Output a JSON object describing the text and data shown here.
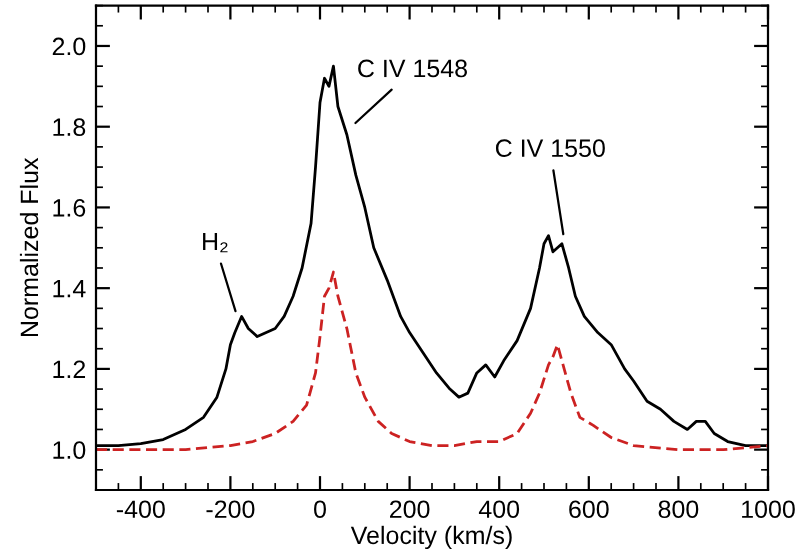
{
  "chart_data": {
    "type": "line",
    "xlabel": "Velocity (km/s)",
    "ylabel": "Normalized Flux",
    "xlim": [
      -500,
      1000
    ],
    "xticks": [
      -400,
      -200,
      0,
      200,
      400,
      600,
      800,
      1000
    ],
    "ylim": [
      0.9,
      2.1
    ],
    "yticks": [
      {
        "value": 1,
        "label": "1.0"
      },
      1.2,
      1.4,
      1.6,
      1.8,
      {
        "value": 2,
        "label": "2.0"
      }
    ],
    "grid": false,
    "legend": false,
    "series": [
      {
        "color": "#000000",
        "line_style": "solid",
        "x": [
          -500,
          -450,
          -400,
          -350,
          -300,
          -260,
          -230,
          -210,
          -200,
          -190,
          -175,
          -160,
          -140,
          -120,
          -100,
          -80,
          -60,
          -40,
          -20,
          -10,
          0,
          10,
          20,
          30,
          40,
          60,
          80,
          100,
          120,
          150,
          180,
          200,
          230,
          260,
          290,
          310,
          330,
          350,
          370,
          390,
          410,
          440,
          470,
          490,
          500,
          510,
          520,
          540,
          555,
          570,
          590,
          620,
          650,
          680,
          700,
          730,
          760,
          790,
          820,
          840,
          860,
          880,
          910,
          950,
          1000
        ],
        "values": [
          1.01,
          1.01,
          1.015,
          1.025,
          1.05,
          1.08,
          1.13,
          1.2,
          1.26,
          1.29,
          1.33,
          1.3,
          1.28,
          1.29,
          1.3,
          1.33,
          1.38,
          1.45,
          1.56,
          1.7,
          1.86,
          1.92,
          1.9,
          1.95,
          1.85,
          1.78,
          1.68,
          1.6,
          1.5,
          1.42,
          1.33,
          1.29,
          1.24,
          1.19,
          1.15,
          1.13,
          1.14,
          1.19,
          1.21,
          1.18,
          1.22,
          1.27,
          1.35,
          1.45,
          1.51,
          1.53,
          1.49,
          1.51,
          1.45,
          1.38,
          1.33,
          1.29,
          1.26,
          1.2,
          1.17,
          1.12,
          1.1,
          1.07,
          1.05,
          1.07,
          1.07,
          1.04,
          1.02,
          1.01,
          1.01
        ]
      },
      {
        "color": "#cc2222",
        "line_style": "dashed",
        "x": [
          -500,
          -400,
          -300,
          -200,
          -150,
          -100,
          -60,
          -30,
          -10,
          0,
          10,
          20,
          30,
          40,
          60,
          80,
          100,
          130,
          160,
          200,
          250,
          300,
          350,
          400,
          440,
          470,
          490,
          510,
          520,
          530,
          545,
          560,
          580,
          610,
          650,
          700,
          800,
          900,
          1000
        ],
        "values": [
          1.0,
          1.0,
          1.0,
          1.01,
          1.02,
          1.04,
          1.07,
          1.11,
          1.19,
          1.28,
          1.38,
          1.4,
          1.44,
          1.38,
          1.3,
          1.19,
          1.13,
          1.07,
          1.04,
          1.02,
          1.01,
          1.01,
          1.02,
          1.02,
          1.04,
          1.09,
          1.14,
          1.21,
          1.23,
          1.26,
          1.2,
          1.14,
          1.08,
          1.06,
          1.03,
          1.01,
          1.0,
          1.0,
          1.01
        ]
      }
    ],
    "annotations": [
      {
        "text": "H₂",
        "x": -185,
        "y": 1.33
      },
      {
        "text": "C IV 1548",
        "x": 70,
        "y": 1.8
      },
      {
        "text": "C IV 1550",
        "x": 545,
        "y": 1.52
      }
    ]
  }
}
